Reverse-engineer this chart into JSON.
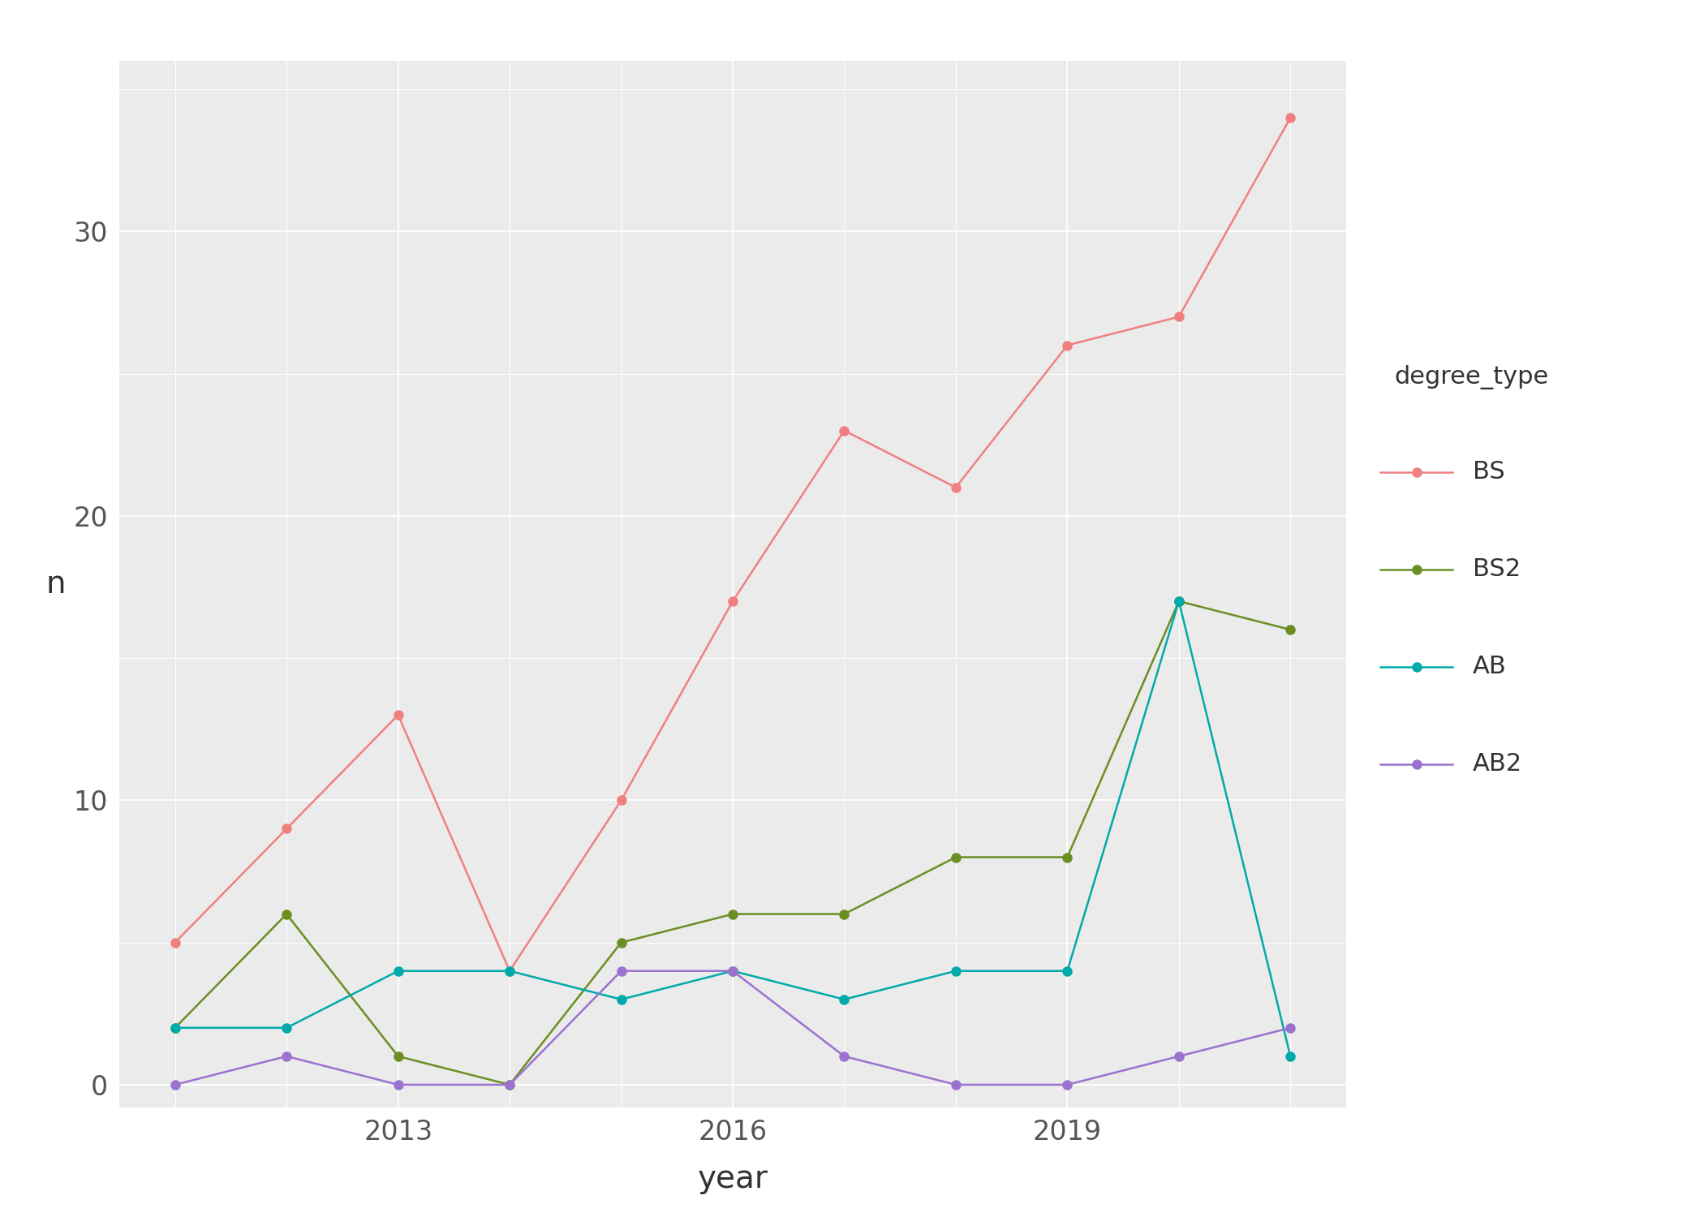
{
  "years": [
    2011,
    2012,
    2013,
    2014,
    2015,
    2016,
    2017,
    2018,
    2019,
    2020,
    2021
  ],
  "BS": [
    5,
    9,
    13,
    4,
    10,
    17,
    23,
    21,
    26,
    27,
    34
  ],
  "BS2": [
    2,
    6,
    1,
    0,
    5,
    6,
    6,
    8,
    8,
    17,
    16
  ],
  "AB": [
    2,
    2,
    4,
    4,
    3,
    4,
    3,
    4,
    4,
    17,
    1
  ],
  "AB2": [
    0,
    1,
    0,
    0,
    4,
    4,
    1,
    0,
    0,
    1,
    2
  ],
  "colors": {
    "BS": "#F08080",
    "BS2": "#6B8E23",
    "AB": "#00AAAA",
    "AB2": "#9B72CF"
  },
  "title": "",
  "xlabel": "year",
  "ylabel": "n",
  "panel_background": "#EBEBEB",
  "outer_background": "#FFFFFF",
  "legend_title": "degree_type",
  "yticks": [
    0,
    10,
    20,
    30
  ],
  "xticks": [
    2013,
    2016,
    2019
  ],
  "ylim": [
    -0.8,
    36
  ],
  "xlim": [
    2010.5,
    2021.5
  ]
}
